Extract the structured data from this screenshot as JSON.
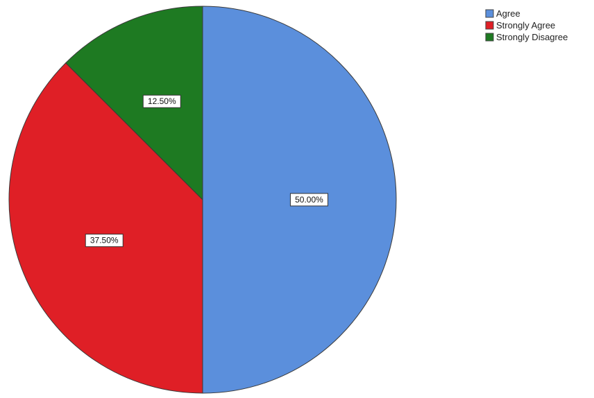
{
  "chart_data": {
    "type": "pie",
    "slices": [
      {
        "label": "Agree",
        "value": 50.0,
        "display": "50.00%",
        "color": "#5b8fdc"
      },
      {
        "label": "Strongly Agree",
        "value": 37.5,
        "display": "37.50%",
        "color": "#df1f26"
      },
      {
        "label": "Strongly Disagree",
        "value": 12.5,
        "display": "12.50%",
        "color": "#1e7a22"
      }
    ],
    "start_angle_deg": 0,
    "direction": "clockwise",
    "legend": {
      "position": "top-right",
      "entries": [
        "Agree",
        "Strongly Agree",
        "Strongly Disagree"
      ]
    },
    "title": ""
  }
}
